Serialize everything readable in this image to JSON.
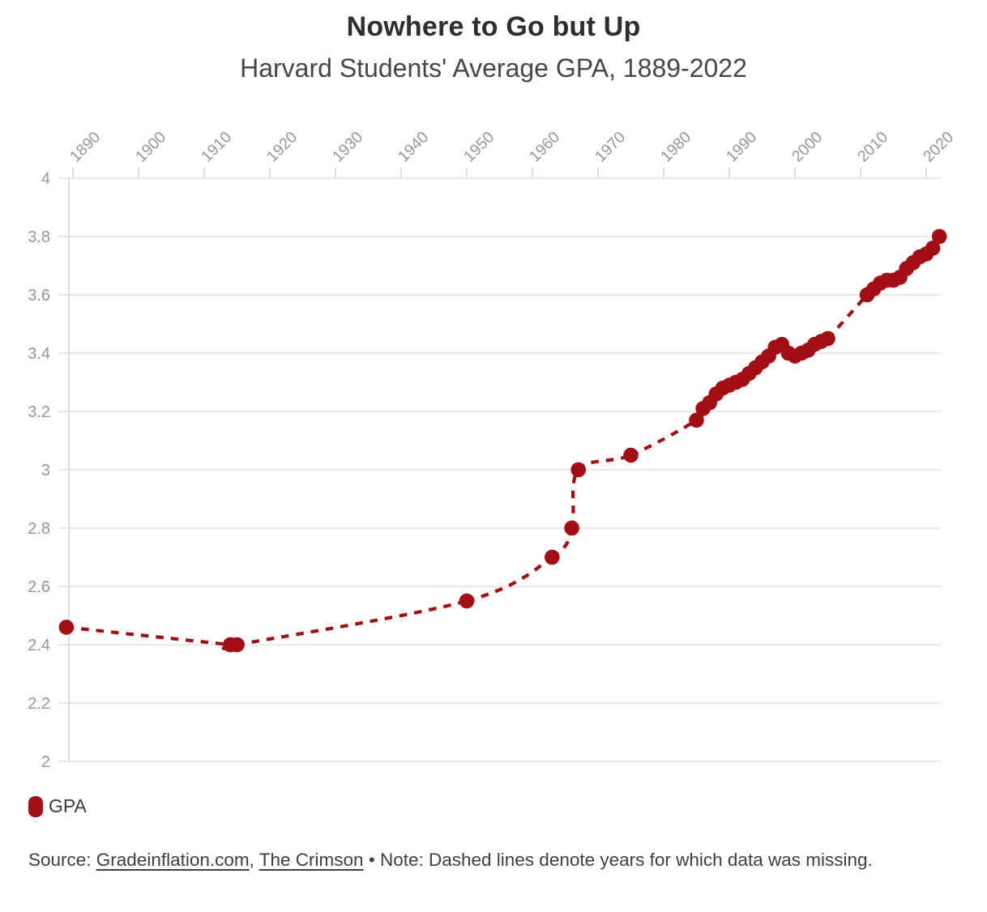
{
  "page": {
    "title": "Nowhere to Go but Up",
    "subtitle": "Harvard Students' Average GPA, 1889-2022"
  },
  "legend": {
    "label": "GPA"
  },
  "footer": {
    "source_prefix": "Source: ",
    "source_link_1": "Gradeinflation.com",
    "source_separator": ", ",
    "source_link_2": "The Crimson",
    "note": " • Note: Dashed lines denote years for which data was missing."
  },
  "colors": {
    "series_red": "#a30d14",
    "grid_line": "#e9e9e9",
    "axis_line": "#d9d9d9",
    "tick_label": "#979797",
    "title_text": "#2e2e2e",
    "subtitle_text": "#474747",
    "body_text": "#3f3f3f"
  },
  "chart_data": {
    "type": "line",
    "title": "Nowhere to Go but Up",
    "subtitle": "Harvard Students' Average GPA, 1889-2022",
    "series_name": "GPA",
    "marker": "circle",
    "grid": "horizontal-only",
    "legend_position": "bottom-left",
    "x_axis_position": "top",
    "xlim": [
      1889,
      2022
    ],
    "ylim": [
      2,
      4
    ],
    "x_ticks": [
      1890,
      1900,
      1910,
      1920,
      1930,
      1940,
      1950,
      1960,
      1970,
      1980,
      1990,
      2000,
      2010,
      2020
    ],
    "y_ticks": [
      4,
      3.8,
      3.6,
      3.4,
      3.2,
      3,
      2.8,
      2.6,
      2.4,
      2.2,
      2
    ],
    "dashed_meaning": "dashed segments denote years for which data was missing",
    "points": [
      {
        "year": 1889,
        "gpa": 2.46,
        "link": "start"
      },
      {
        "year": 1914,
        "gpa": 2.4,
        "link": "dashed"
      },
      {
        "year": 1915,
        "gpa": 2.4,
        "link": "solid"
      },
      {
        "year": 1950,
        "gpa": 2.55,
        "link": "dashed"
      },
      {
        "year": 1963,
        "gpa": 2.7,
        "link": "dashed"
      },
      {
        "year": 1966,
        "gpa": 2.8,
        "link": "dashed"
      },
      {
        "year": 1967,
        "gpa": 3.0,
        "link": "dashed"
      },
      {
        "year": 1975,
        "gpa": 3.05,
        "link": "dashed"
      },
      {
        "year": 1985,
        "gpa": 3.17,
        "link": "dashed"
      },
      {
        "year": 1986,
        "gpa": 3.21,
        "link": "solid"
      },
      {
        "year": 1987,
        "gpa": 3.23,
        "link": "solid"
      },
      {
        "year": 1988,
        "gpa": 3.26,
        "link": "solid"
      },
      {
        "year": 1989,
        "gpa": 3.28,
        "link": "solid"
      },
      {
        "year": 1990,
        "gpa": 3.29,
        "link": "solid"
      },
      {
        "year": 1991,
        "gpa": 3.3,
        "link": "solid"
      },
      {
        "year": 1992,
        "gpa": 3.31,
        "link": "solid"
      },
      {
        "year": 1993,
        "gpa": 3.33,
        "link": "solid"
      },
      {
        "year": 1994,
        "gpa": 3.35,
        "link": "solid"
      },
      {
        "year": 1995,
        "gpa": 3.37,
        "link": "solid"
      },
      {
        "year": 1996,
        "gpa": 3.39,
        "link": "solid"
      },
      {
        "year": 1997,
        "gpa": 3.42,
        "link": "solid"
      },
      {
        "year": 1998,
        "gpa": 3.43,
        "link": "solid"
      },
      {
        "year": 1999,
        "gpa": 3.4,
        "link": "solid"
      },
      {
        "year": 2000,
        "gpa": 3.39,
        "link": "solid"
      },
      {
        "year": 2001,
        "gpa": 3.4,
        "link": "solid"
      },
      {
        "year": 2002,
        "gpa": 3.41,
        "link": "solid"
      },
      {
        "year": 2003,
        "gpa": 3.43,
        "link": "solid"
      },
      {
        "year": 2004,
        "gpa": 3.44,
        "link": "solid"
      },
      {
        "year": 2005,
        "gpa": 3.45,
        "link": "solid"
      },
      {
        "year": 2011,
        "gpa": 3.6,
        "link": "dashed"
      },
      {
        "year": 2012,
        "gpa": 3.62,
        "link": "solid"
      },
      {
        "year": 2013,
        "gpa": 3.64,
        "link": "solid"
      },
      {
        "year": 2014,
        "gpa": 3.65,
        "link": "solid"
      },
      {
        "year": 2015,
        "gpa": 3.65,
        "link": "solid"
      },
      {
        "year": 2016,
        "gpa": 3.66,
        "link": "solid"
      },
      {
        "year": 2017,
        "gpa": 3.69,
        "link": "solid"
      },
      {
        "year": 2018,
        "gpa": 3.71,
        "link": "solid"
      },
      {
        "year": 2019,
        "gpa": 3.73,
        "link": "solid"
      },
      {
        "year": 2020,
        "gpa": 3.74,
        "link": "solid"
      },
      {
        "year": 2021,
        "gpa": 3.76,
        "link": "solid"
      },
      {
        "year": 2022,
        "gpa": 3.8,
        "link": "solid"
      }
    ]
  }
}
